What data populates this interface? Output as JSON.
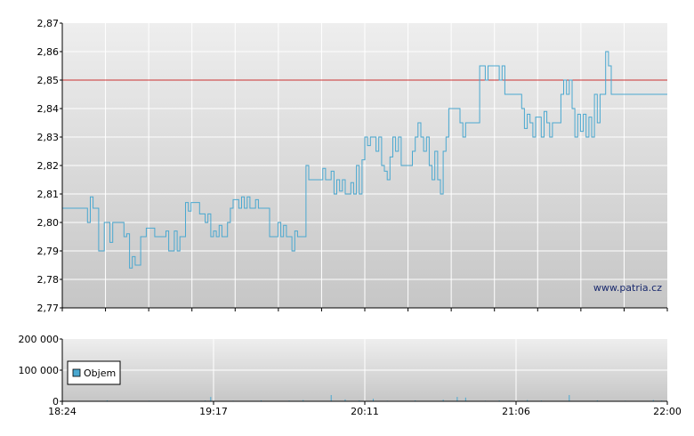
{
  "chart_data": [
    {
      "type": "line",
      "title": "",
      "xlabel": "",
      "ylabel": "",
      "ylim": [
        2.77,
        2.87
      ],
      "y_ticks": [
        "2,77",
        "2,78",
        "2,79",
        "2,80",
        "2,81",
        "2,82",
        "2,83",
        "2,84",
        "2,85",
        "2,86",
        "2,87"
      ],
      "x_range": [
        "18:24",
        "22:00"
      ],
      "grid": true,
      "reference_line": {
        "y": 2.85,
        "color": "#cc3333"
      },
      "watermark": "www.patria.cz",
      "series": [
        {
          "color": "#4aa8d0",
          "points": [
            [
              "18:24",
              2.805
            ],
            [
              "18:32",
              2.805
            ],
            [
              "18:33",
              2.8
            ],
            [
              "18:34",
              2.809
            ],
            [
              "18:35",
              2.805
            ],
            [
              "18:37",
              2.79
            ],
            [
              "18:39",
              2.8
            ],
            [
              "18:41",
              2.793
            ],
            [
              "18:42",
              2.8
            ],
            [
              "18:44",
              2.8
            ],
            [
              "18:46",
              2.795
            ],
            [
              "18:47",
              2.796
            ],
            [
              "18:48",
              2.784
            ],
            [
              "18:49",
              2.788
            ],
            [
              "18:50",
              2.785
            ],
            [
              "18:52",
              2.795
            ],
            [
              "18:54",
              2.798
            ],
            [
              "18:56",
              2.798
            ],
            [
              "18:57",
              2.795
            ],
            [
              "19:00",
              2.795
            ],
            [
              "19:01",
              2.797
            ],
            [
              "19:02",
              2.79
            ],
            [
              "19:04",
              2.797
            ],
            [
              "19:05",
              2.79
            ],
            [
              "19:06",
              2.795
            ],
            [
              "19:07",
              2.795
            ],
            [
              "19:08",
              2.807
            ],
            [
              "19:09",
              2.804
            ],
            [
              "19:10",
              2.807
            ],
            [
              "19:12",
              2.807
            ],
            [
              "19:13",
              2.803
            ],
            [
              "19:15",
              2.8
            ],
            [
              "19:16",
              2.803
            ],
            [
              "19:17",
              2.795
            ],
            [
              "19:18",
              2.797
            ],
            [
              "19:19",
              2.795
            ],
            [
              "19:20",
              2.799
            ],
            [
              "19:21",
              2.795
            ],
            [
              "19:23",
              2.8
            ],
            [
              "19:24",
              2.805
            ],
            [
              "19:25",
              2.808
            ],
            [
              "19:26",
              2.808
            ],
            [
              "19:27",
              2.805
            ],
            [
              "19:28",
              2.809
            ],
            [
              "19:29",
              2.805
            ],
            [
              "19:30",
              2.809
            ],
            [
              "19:31",
              2.805
            ],
            [
              "19:33",
              2.808
            ],
            [
              "19:34",
              2.805
            ],
            [
              "19:37",
              2.805
            ],
            [
              "19:38",
              2.795
            ],
            [
              "19:40",
              2.795
            ],
            [
              "19:41",
              2.8
            ],
            [
              "19:42",
              2.795
            ],
            [
              "19:43",
              2.799
            ],
            [
              "19:44",
              2.795
            ],
            [
              "19:45",
              2.795
            ],
            [
              "19:46",
              2.79
            ],
            [
              "19:47",
              2.797
            ],
            [
              "19:48",
              2.795
            ],
            [
              "19:50",
              2.795
            ],
            [
              "19:51",
              2.82
            ],
            [
              "19:52",
              2.815
            ],
            [
              "19:56",
              2.815
            ],
            [
              "19:57",
              2.819
            ],
            [
              "19:58",
              2.815
            ],
            [
              "20:00",
              2.818
            ],
            [
              "20:01",
              2.81
            ],
            [
              "20:02",
              2.815
            ],
            [
              "20:03",
              2.811
            ],
            [
              "20:04",
              2.815
            ],
            [
              "20:05",
              2.81
            ],
            [
              "20:06",
              2.81
            ],
            [
              "20:07",
              2.814
            ],
            [
              "20:08",
              2.81
            ],
            [
              "20:09",
              2.82
            ],
            [
              "20:10",
              2.81
            ],
            [
              "20:11",
              2.822
            ],
            [
              "20:12",
              2.83
            ],
            [
              "20:13",
              2.827
            ],
            [
              "20:14",
              2.83
            ],
            [
              "20:15",
              2.83
            ],
            [
              "20:16",
              2.825
            ],
            [
              "20:17",
              2.83
            ],
            [
              "20:18",
              2.82
            ],
            [
              "20:19",
              2.818
            ],
            [
              "20:20",
              2.815
            ],
            [
              "20:21",
              2.823
            ],
            [
              "20:22",
              2.83
            ],
            [
              "20:23",
              2.825
            ],
            [
              "20:24",
              2.83
            ],
            [
              "20:25",
              2.82
            ],
            [
              "20:28",
              2.82
            ],
            [
              "20:29",
              2.825
            ],
            [
              "20:30",
              2.83
            ],
            [
              "20:31",
              2.835
            ],
            [
              "20:32",
              2.83
            ],
            [
              "20:33",
              2.825
            ],
            [
              "20:34",
              2.83
            ],
            [
              "20:35",
              2.82
            ],
            [
              "20:36",
              2.815
            ],
            [
              "20:37",
              2.825
            ],
            [
              "20:38",
              2.815
            ],
            [
              "20:39",
              2.81
            ],
            [
              "20:40",
              2.825
            ],
            [
              "20:41",
              2.83
            ],
            [
              "20:42",
              2.84
            ],
            [
              "20:45",
              2.84
            ],
            [
              "20:46",
              2.835
            ],
            [
              "20:47",
              2.83
            ],
            [
              "20:48",
              2.835
            ],
            [
              "20:52",
              2.835
            ],
            [
              "20:53",
              2.855
            ],
            [
              "20:55",
              2.85
            ],
            [
              "20:56",
              2.855
            ],
            [
              "20:59",
              2.855
            ],
            [
              "21:00",
              2.85
            ],
            [
              "21:01",
              2.855
            ],
            [
              "21:02",
              2.845
            ],
            [
              "21:07",
              2.845
            ],
            [
              "21:08",
              2.84
            ],
            [
              "21:09",
              2.833
            ],
            [
              "21:10",
              2.838
            ],
            [
              "21:11",
              2.835
            ],
            [
              "21:12",
              2.83
            ],
            [
              "21:13",
              2.837
            ],
            [
              "21:15",
              2.83
            ],
            [
              "21:16",
              2.839
            ],
            [
              "21:17",
              2.835
            ],
            [
              "21:18",
              2.83
            ],
            [
              "21:19",
              2.835
            ],
            [
              "21:21",
              2.835
            ],
            [
              "21:22",
              2.845
            ],
            [
              "21:23",
              2.85
            ],
            [
              "21:24",
              2.845
            ],
            [
              "21:25",
              2.85
            ],
            [
              "21:26",
              2.84
            ],
            [
              "21:27",
              2.83
            ],
            [
              "21:28",
              2.838
            ],
            [
              "21:29",
              2.832
            ],
            [
              "21:30",
              2.838
            ],
            [
              "21:31",
              2.83
            ],
            [
              "21:32",
              2.837
            ],
            [
              "21:33",
              2.83
            ],
            [
              "21:34",
              2.845
            ],
            [
              "21:35",
              2.835
            ],
            [
              "21:36",
              2.845
            ],
            [
              "21:37",
              2.845
            ],
            [
              "21:38",
              2.86
            ],
            [
              "21:39",
              2.855
            ],
            [
              "21:40",
              2.845
            ]
          ]
        }
      ]
    },
    {
      "type": "bar",
      "title": "",
      "ylim": [
        0,
        200000
      ],
      "y_ticks": [
        "0",
        "100 000",
        "200 000"
      ],
      "x_ticks": [
        "18:24",
        "19:17",
        "20:11",
        "21:06",
        "22:00"
      ],
      "grid": true,
      "legend": {
        "position": "left",
        "entries": [
          "Objem"
        ]
      },
      "series": [
        {
          "name": "Objem",
          "color": "#4aa8d0",
          "bars": [
            [
              "18:30",
              2000
            ],
            [
              "18:40",
              3000
            ],
            [
              "18:55",
              2000
            ],
            [
              "19:05",
              1500
            ],
            [
              "19:15",
              2500
            ],
            [
              "19:17",
              14000
            ],
            [
              "19:25",
              2000
            ],
            [
              "19:35",
              3000
            ],
            [
              "19:45",
              2500
            ],
            [
              "19:50",
              4000
            ],
            [
              "20:00",
              20000
            ],
            [
              "20:05",
              6000
            ],
            [
              "20:10",
              3000
            ],
            [
              "20:15",
              8000
            ],
            [
              "20:20",
              2000
            ],
            [
              "20:30",
              3000
            ],
            [
              "20:40",
              5000
            ],
            [
              "20:45",
              14000
            ],
            [
              "20:48",
              12000
            ],
            [
              "20:55",
              2000
            ],
            [
              "21:00",
              3000
            ],
            [
              "21:10",
              4000
            ],
            [
              "21:15",
              2500
            ],
            [
              "21:25",
              20000
            ],
            [
              "21:35",
              3000
            ],
            [
              "21:45",
              2000
            ],
            [
              "21:55",
              4000
            ],
            [
              "21:58",
              2500
            ]
          ]
        }
      ]
    }
  ]
}
